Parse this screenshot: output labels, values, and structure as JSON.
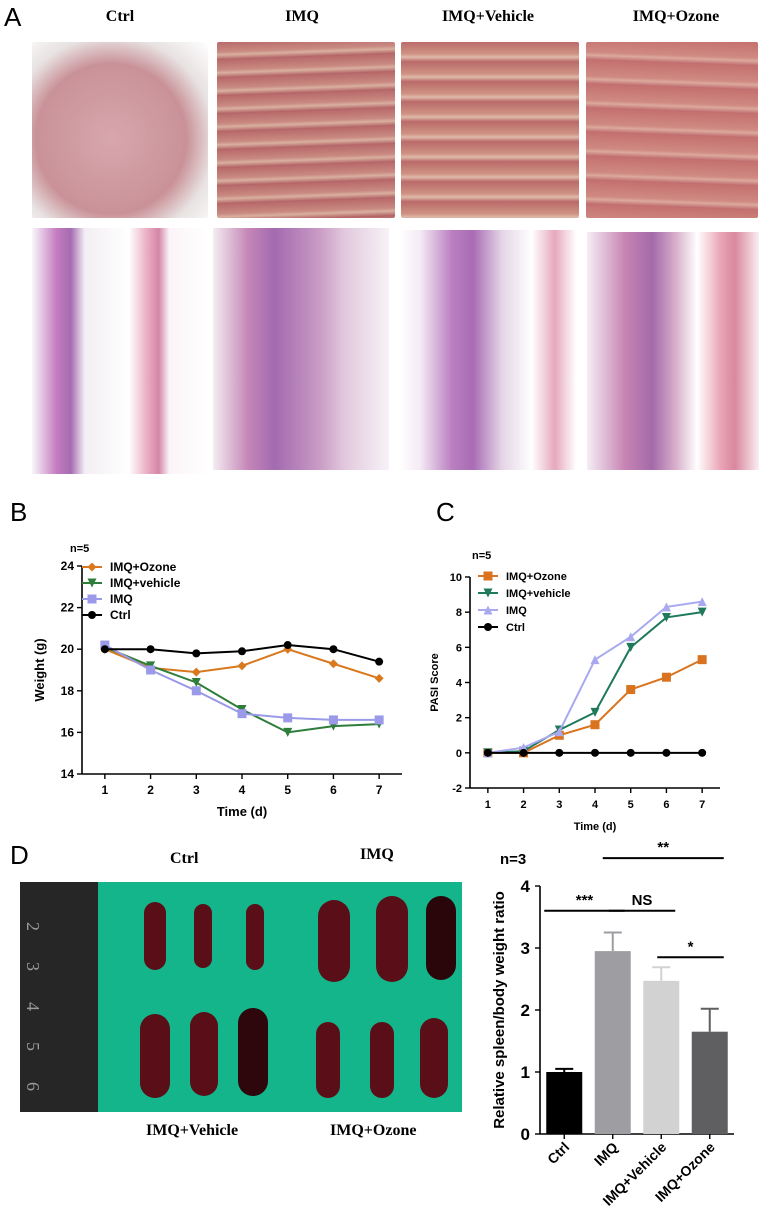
{
  "panels": {
    "a_letter": "A",
    "b_letter": "B",
    "c_letter": "C",
    "d_letter": "D"
  },
  "panel_a": {
    "columns": [
      "Ctrl",
      "IMQ",
      "IMQ+Vehicle",
      "IMQ+Ozone"
    ]
  },
  "panel_d_photo": {
    "top_labels": [
      "Ctrl",
      "IMQ"
    ],
    "bottom_labels": [
      "IMQ+Vehicle",
      "IMQ+Ozone"
    ],
    "ruler_marks": [
      "2",
      "3",
      "4",
      "5",
      "6"
    ]
  },
  "chart_data": [
    {
      "type": "line",
      "panel": "B",
      "n_label": "n=5",
      "xlabel": "Time (d)",
      "ylabel": "Weight (g)",
      "x": [
        1,
        2,
        3,
        4,
        5,
        6,
        7
      ],
      "xlim": [
        0.5,
        7.5
      ],
      "ylim": [
        14,
        24
      ],
      "yticks": [
        14,
        16,
        18,
        20,
        22,
        24
      ],
      "legend": "top-left",
      "series": [
        {
          "name": "IMQ+Ozone",
          "color": "#d9791f",
          "marker": "diamond",
          "values": [
            20.0,
            19.1,
            18.9,
            19.2,
            20.0,
            19.3,
            18.6
          ]
        },
        {
          "name": "IMQ+vehicle",
          "color": "#2e7d3a",
          "marker": "triangle-down",
          "values": [
            20.1,
            19.2,
            18.4,
            17.1,
            16.0,
            16.3,
            16.4
          ]
        },
        {
          "name": "IMQ",
          "color": "#9a9ae8",
          "marker": "square",
          "values": [
            20.2,
            19.0,
            18.0,
            16.9,
            16.7,
            16.6,
            16.6
          ]
        },
        {
          "name": "Ctrl",
          "color": "#000000",
          "marker": "circle",
          "values": [
            20.0,
            20.0,
            19.8,
            19.9,
            20.2,
            20.0,
            19.4
          ]
        }
      ]
    },
    {
      "type": "line",
      "panel": "C",
      "n_label": "n=5",
      "xlabel": "Time (d)",
      "ylabel": "PASI Score",
      "x": [
        1,
        2,
        3,
        4,
        5,
        6,
        7
      ],
      "xlim": [
        0.5,
        7.5
      ],
      "ylim": [
        -2,
        10
      ],
      "yticks": [
        -2,
        0,
        2,
        4,
        6,
        8,
        10
      ],
      "legend": "top-left",
      "series": [
        {
          "name": "IMQ+Ozone",
          "color": "#d9731f",
          "marker": "square",
          "values": [
            0,
            0,
            1.0,
            1.6,
            3.6,
            4.3,
            5.3
          ]
        },
        {
          "name": "IMQ+vehicle",
          "color": "#1f7a5c",
          "marker": "triangle-down",
          "values": [
            0,
            0.1,
            1.3,
            2.3,
            6.0,
            7.7,
            8.0
          ]
        },
        {
          "name": "IMQ",
          "color": "#a9a9f0",
          "marker": "triangle-up",
          "values": [
            0,
            0.3,
            1.2,
            5.3,
            6.6,
            8.3,
            8.6
          ]
        },
        {
          "name": "Ctrl",
          "color": "#000000",
          "marker": "circle",
          "values": [
            0,
            0,
            0,
            0,
            0,
            0,
            0
          ]
        }
      ]
    },
    {
      "type": "bar",
      "panel": "D",
      "n_label": "n=3",
      "ylabel": "Relative spleen/body weight ratio",
      "categories": [
        "Ctrl",
        "IMQ",
        "IMQ+Vehicle",
        "IMQ+Ozone"
      ],
      "values": [
        1.0,
        2.95,
        2.47,
        1.65
      ],
      "errors": [
        0.05,
        0.3,
        0.22,
        0.37
      ],
      "colors": [
        "#000000",
        "#9e9ea2",
        "#d2d2d2",
        "#5f5f61"
      ],
      "ylim": [
        0,
        4
      ],
      "yticks": [
        0,
        1,
        2,
        3,
        4
      ],
      "significance": [
        {
          "from": 0,
          "to": 1,
          "label": "***"
        },
        {
          "from": 1,
          "to": 2,
          "label": "NS"
        },
        {
          "from": 2,
          "to": 3,
          "label": "*"
        },
        {
          "from": 1,
          "to": 3,
          "label": "**"
        }
      ]
    }
  ]
}
